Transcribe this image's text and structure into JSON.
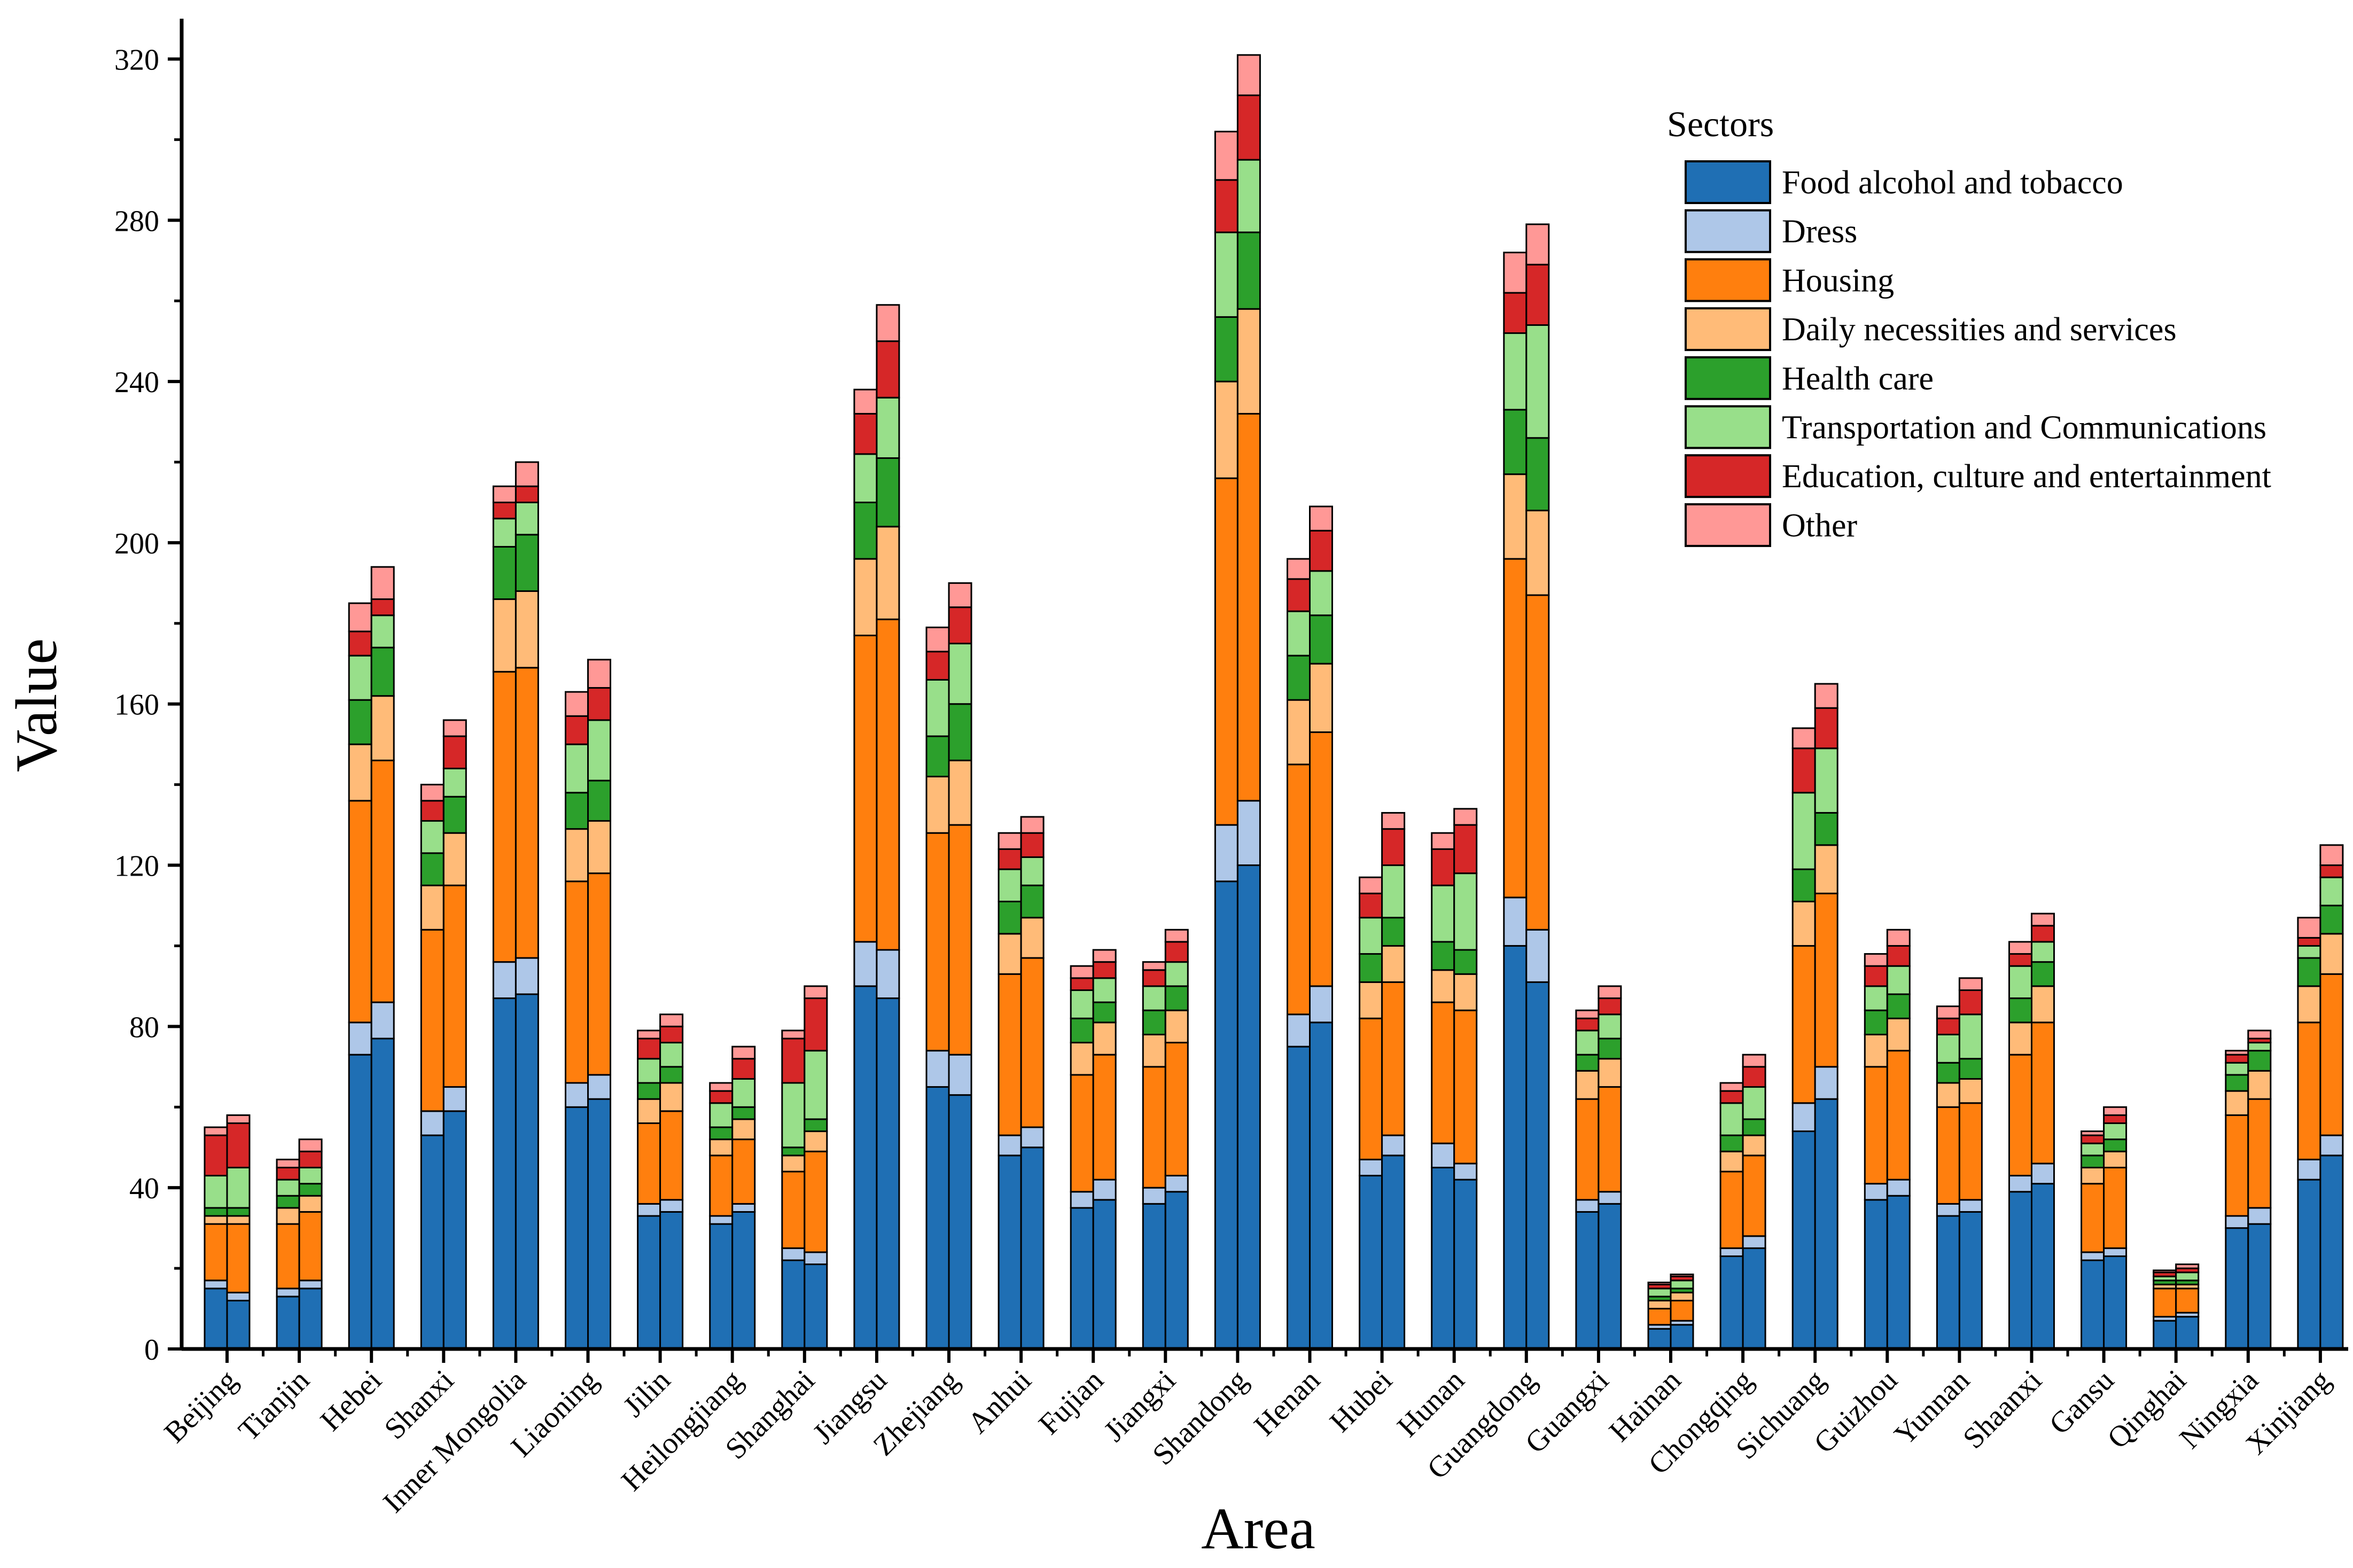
{
  "chart_data": {
    "type": "bar",
    "stacked": true,
    "grouped": true,
    "title": "",
    "xlabel": "Area",
    "ylabel": "Value",
    "ylim": [
      0,
      330
    ],
    "yticks": [
      0,
      40,
      80,
      120,
      160,
      200,
      240,
      280,
      320
    ],
    "legend_title": "Sectors",
    "legend_position": "top-right",
    "categories": [
      "Beijing",
      "Tianjin",
      "Hebei",
      "Shanxi",
      "Inner Mongolia",
      "Liaoning",
      "Jilin",
      "Heilongjiang",
      "Shanghai",
      "Jiangsu",
      "Zhejiang",
      "Anhui",
      "Fujian",
      "Jiangxi",
      "Shandong",
      "Henan",
      "Hubei",
      "Hunan",
      "Guangdong",
      "Guangxi",
      "Hainan",
      "Chongqing",
      "Sichuang",
      "Guizhou",
      "Yunnan",
      "Shaanxi",
      "Gansu",
      "Qinghai",
      "Ningxia",
      "Xinjiang"
    ],
    "series": [
      {
        "name": "Food alcohol and tobacco",
        "color": "#1f6fb4",
        "values": [
          [
            15,
            12
          ],
          [
            13,
            15
          ],
          [
            73,
            77
          ],
          [
            53,
            59
          ],
          [
            87,
            88
          ],
          [
            60,
            62
          ],
          [
            33,
            34
          ],
          [
            31,
            34
          ],
          [
            22,
            21
          ],
          [
            90,
            87
          ],
          [
            65,
            63
          ],
          [
            48,
            50
          ],
          [
            35,
            37
          ],
          [
            36,
            39
          ],
          [
            116,
            120
          ],
          [
            75,
            81
          ],
          [
            43,
            48
          ],
          [
            45,
            42
          ],
          [
            100,
            91
          ],
          [
            34,
            36
          ],
          [
            5,
            6
          ],
          [
            23,
            25
          ],
          [
            54,
            62
          ],
          [
            37,
            38
          ],
          [
            33,
            34
          ],
          [
            39,
            41
          ],
          [
            22,
            23
          ],
          [
            7,
            8
          ],
          [
            30,
            31
          ],
          [
            42,
            48
          ]
        ]
      },
      {
        "name": "Dress",
        "color": "#aec7e8",
        "values": [
          [
            2,
            2
          ],
          [
            2,
            2
          ],
          [
            8,
            9
          ],
          [
            6,
            6
          ],
          [
            9,
            9
          ],
          [
            6,
            6
          ],
          [
            3,
            3
          ],
          [
            2,
            2
          ],
          [
            3,
            3
          ],
          [
            11,
            12
          ],
          [
            9,
            10
          ],
          [
            5,
            5
          ],
          [
            4,
            5
          ],
          [
            4,
            4
          ],
          [
            14,
            16
          ],
          [
            8,
            9
          ],
          [
            4,
            5
          ],
          [
            6,
            4
          ],
          [
            12,
            13
          ],
          [
            3,
            3
          ],
          [
            1,
            1
          ],
          [
            2,
            3
          ],
          [
            7,
            8
          ],
          [
            4,
            4
          ],
          [
            3,
            3
          ],
          [
            4,
            5
          ],
          [
            2,
            2
          ],
          [
            1,
            1
          ],
          [
            3,
            4
          ],
          [
            5,
            5
          ]
        ]
      },
      {
        "name": "Housing",
        "color": "#ff7f0e",
        "values": [
          [
            14,
            17
          ],
          [
            16,
            17
          ],
          [
            55,
            60
          ],
          [
            45,
            50
          ],
          [
            72,
            72
          ],
          [
            50,
            50
          ],
          [
            20,
            22
          ],
          [
            15,
            16
          ],
          [
            19,
            25
          ],
          [
            76,
            82
          ],
          [
            54,
            57
          ],
          [
            40,
            42
          ],
          [
            29,
            31
          ],
          [
            30,
            33
          ],
          [
            86,
            96
          ],
          [
            62,
            63
          ],
          [
            35,
            38
          ],
          [
            35,
            38
          ],
          [
            84,
            83
          ],
          [
            25,
            26
          ],
          [
            4,
            5
          ],
          [
            19,
            20
          ],
          [
            39,
            43
          ],
          [
            29,
            32
          ],
          [
            24,
            24
          ],
          [
            30,
            35
          ],
          [
            17,
            20
          ],
          [
            7,
            6
          ],
          [
            25,
            27
          ],
          [
            34,
            40
          ]
        ]
      },
      {
        "name": "Daily necessities and services",
        "color": "#ffbb78",
        "values": [
          [
            2,
            2
          ],
          [
            4,
            4
          ],
          [
            14,
            16
          ],
          [
            11,
            13
          ],
          [
            18,
            19
          ],
          [
            13,
            13
          ],
          [
            6,
            7
          ],
          [
            4,
            5
          ],
          [
            4,
            5
          ],
          [
            19,
            23
          ],
          [
            14,
            16
          ],
          [
            10,
            10
          ],
          [
            8,
            8
          ],
          [
            8,
            8
          ],
          [
            24,
            26
          ],
          [
            16,
            17
          ],
          [
            9,
            9
          ],
          [
            8,
            9
          ],
          [
            21,
            21
          ],
          [
            7,
            7
          ],
          [
            2,
            2
          ],
          [
            5,
            5
          ],
          [
            11,
            12
          ],
          [
            8,
            8
          ],
          [
            6,
            6
          ],
          [
            8,
            9
          ],
          [
            4,
            4
          ],
          [
            1,
            1
          ],
          [
            6,
            7
          ],
          [
            9,
            10
          ]
        ]
      },
      {
        "name": "Health care",
        "color": "#2ca02c",
        "values": [
          [
            2,
            2
          ],
          [
            3,
            3
          ],
          [
            11,
            12
          ],
          [
            8,
            9
          ],
          [
            13,
            14
          ],
          [
            9,
            10
          ],
          [
            4,
            4
          ],
          [
            3,
            3
          ],
          [
            2,
            3
          ],
          [
            14,
            17
          ],
          [
            10,
            14
          ],
          [
            8,
            8
          ],
          [
            6,
            5
          ],
          [
            6,
            6
          ],
          [
            16,
            19
          ],
          [
            11,
            12
          ],
          [
            7,
            7
          ],
          [
            7,
            6
          ],
          [
            16,
            18
          ],
          [
            4,
            5
          ],
          [
            1,
            1
          ],
          [
            4,
            4
          ],
          [
            8,
            8
          ],
          [
            6,
            6
          ],
          [
            5,
            5
          ],
          [
            6,
            6
          ],
          [
            3,
            3
          ],
          [
            1,
            1
          ],
          [
            4,
            5
          ],
          [
            7,
            7
          ]
        ]
      },
      {
        "name": "Transportation and Communications",
        "color": "#98df8a",
        "values": [
          [
            8,
            10
          ],
          [
            4,
            4
          ],
          [
            11,
            8
          ],
          [
            8,
            7
          ],
          [
            7,
            8
          ],
          [
            12,
            15
          ],
          [
            6,
            6
          ],
          [
            6,
            7
          ],
          [
            16,
            17
          ],
          [
            12,
            15
          ],
          [
            14,
            15
          ],
          [
            8,
            7
          ],
          [
            7,
            6
          ],
          [
            6,
            6
          ],
          [
            21,
            18
          ],
          [
            11,
            11
          ],
          [
            9,
            13
          ],
          [
            14,
            19
          ],
          [
            19,
            28
          ],
          [
            6,
            6
          ],
          [
            2,
            2
          ],
          [
            8,
            8
          ],
          [
            19,
            16
          ],
          [
            6,
            7
          ],
          [
            7,
            11
          ],
          [
            8,
            5
          ],
          [
            3,
            4
          ],
          [
            1,
            2
          ],
          [
            3,
            2
          ],
          [
            3,
            7
          ]
        ]
      },
      {
        "name": "Education, culture and entertainment",
        "color": "#d62728",
        "values": [
          [
            10,
            11
          ],
          [
            3,
            4
          ],
          [
            6,
            4
          ],
          [
            5,
            8
          ],
          [
            4,
            4
          ],
          [
            7,
            8
          ],
          [
            5,
            4
          ],
          [
            3,
            5
          ],
          [
            11,
            13
          ],
          [
            10,
            14
          ],
          [
            7,
            9
          ],
          [
            5,
            6
          ],
          [
            3,
            4
          ],
          [
            4,
            5
          ],
          [
            13,
            16
          ],
          [
            8,
            10
          ],
          [
            6,
            9
          ],
          [
            9,
            12
          ],
          [
            10,
            15
          ],
          [
            3,
            4
          ],
          [
            1,
            1
          ],
          [
            3,
            5
          ],
          [
            11,
            10
          ],
          [
            5,
            5
          ],
          [
            4,
            6
          ],
          [
            3,
            4
          ],
          [
            2,
            2
          ],
          [
            1,
            1
          ],
          [
            2,
            1
          ],
          [
            2,
            3
          ]
        ]
      },
      {
        "name": "Other",
        "color": "#ff9896",
        "values": [
          [
            2,
            2
          ],
          [
            2,
            3
          ],
          [
            7,
            8
          ],
          [
            4,
            4
          ],
          [
            4,
            6
          ],
          [
            6,
            7
          ],
          [
            2,
            3
          ],
          [
            2,
            3
          ],
          [
            2,
            3
          ],
          [
            6,
            9
          ],
          [
            6,
            6
          ],
          [
            4,
            4
          ],
          [
            3,
            3
          ],
          [
            2,
            3
          ],
          [
            12,
            10
          ],
          [
            5,
            6
          ],
          [
            4,
            4
          ],
          [
            4,
            4
          ],
          [
            10,
            10
          ],
          [
            2,
            3
          ],
          [
            0.5,
            0.5
          ],
          [
            2,
            3
          ],
          [
            5,
            6
          ],
          [
            3,
            4
          ],
          [
            3,
            3
          ],
          [
            3,
            3
          ],
          [
            1,
            2
          ],
          [
            0.5,
            1
          ],
          [
            1,
            2
          ],
          [
            5,
            5
          ]
        ]
      }
    ]
  }
}
